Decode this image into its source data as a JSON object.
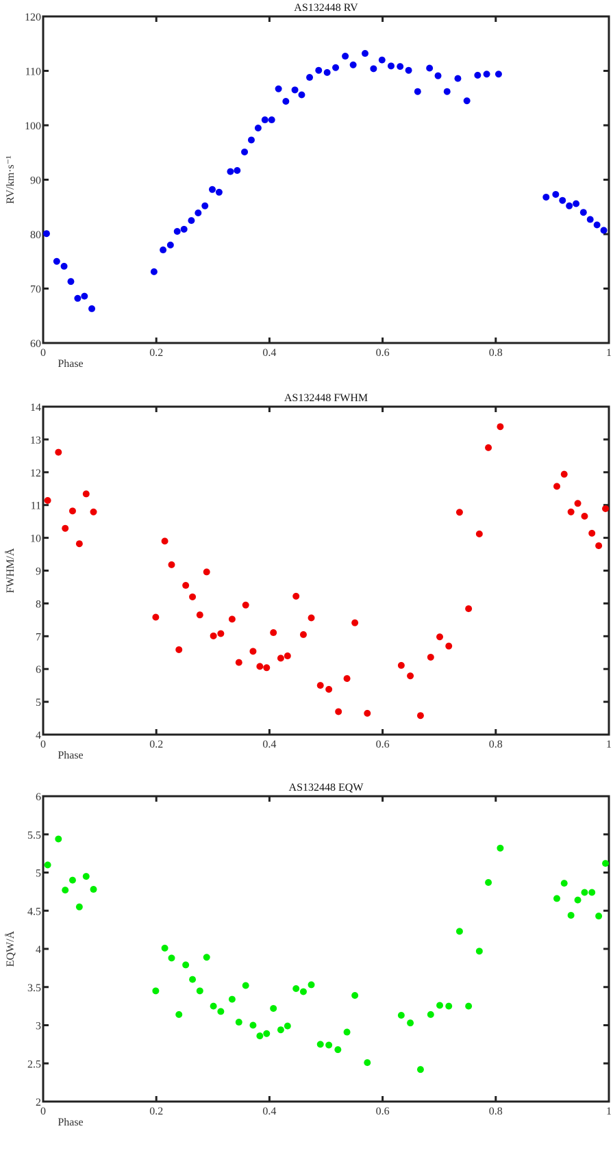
{
  "chart_data": [
    {
      "type": "scatter",
      "title": "AS132448 RV",
      "xlabel": "Phase",
      "ylabel": "RV/km·s⁻¹",
      "xlim": [
        0,
        1
      ],
      "ylim": [
        60,
        120
      ],
      "xticks": [
        "0",
        "0.2",
        "0.4",
        "0.6",
        "0.8",
        "1"
      ],
      "yticks": [
        "60",
        "70",
        "80",
        "90",
        "100",
        "110",
        "120"
      ],
      "grid": false,
      "color": "#0000ee",
      "x": [
        0.006,
        0.024,
        0.037,
        0.049,
        0.061,
        0.073,
        0.086,
        0.196,
        0.212,
        0.225,
        0.237,
        0.249,
        0.262,
        0.274,
        0.286,
        0.299,
        0.311,
        0.331,
        0.343,
        0.356,
        0.368,
        0.38,
        0.392,
        0.404,
        0.416,
        0.429,
        0.445,
        0.457,
        0.471,
        0.487,
        0.502,
        0.517,
        0.534,
        0.548,
        0.569,
        0.584,
        0.599,
        0.615,
        0.631,
        0.646,
        0.662,
        0.683,
        0.698,
        0.714,
        0.733,
        0.749,
        0.768,
        0.784,
        0.805,
        0.889,
        0.906,
        0.918,
        0.93,
        0.942,
        0.955,
        0.967,
        0.979,
        0.991
      ],
      "y": [
        80.1,
        75.0,
        74.1,
        71.3,
        68.2,
        68.6,
        66.3,
        73.1,
        77.1,
        78.0,
        80.5,
        80.9,
        82.5,
        83.9,
        85.2,
        88.2,
        87.7,
        91.5,
        91.7,
        95.1,
        97.3,
        99.5,
        101.0,
        101.0,
        106.7,
        104.4,
        106.5,
        105.6,
        108.8,
        110.1,
        109.7,
        110.6,
        112.7,
        111.1,
        113.2,
        110.4,
        112.0,
        110.9,
        110.8,
        110.1,
        106.2,
        110.5,
        109.1,
        106.2,
        108.6,
        104.5,
        109.2,
        109.4,
        109.4,
        86.8,
        87.3,
        86.2,
        85.2,
        85.6,
        84.0,
        82.7,
        81.7,
        80.7
      ]
    },
    {
      "type": "scatter",
      "title": "AS132448 FWHM",
      "xlabel": "Phase",
      "ylabel": "FWHM/Å",
      "xlim": [
        0,
        1
      ],
      "ylim": [
        4,
        14
      ],
      "xticks": [
        "0",
        "0.2",
        "0.4",
        "0.6",
        "0.8",
        "1"
      ],
      "yticks": [
        "4",
        "5",
        "6",
        "7",
        "8",
        "9",
        "10",
        "11",
        "12",
        "13",
        "14"
      ],
      "grid": false,
      "color": "#ee0000",
      "x": [
        0.008,
        0.027,
        0.039,
        0.052,
        0.064,
        0.076,
        0.089,
        0.199,
        0.215,
        0.227,
        0.24,
        0.252,
        0.264,
        0.277,
        0.289,
        0.301,
        0.314,
        0.334,
        0.346,
        0.358,
        0.371,
        0.383,
        0.395,
        0.407,
        0.42,
        0.432,
        0.447,
        0.46,
        0.474,
        0.49,
        0.505,
        0.522,
        0.537,
        0.551,
        0.573,
        0.633,
        0.649,
        0.667,
        0.685,
        0.701,
        0.717,
        0.736,
        0.752,
        0.771,
        0.787,
        0.808,
        0.908,
        0.921,
        0.933,
        0.945,
        0.957,
        0.97,
        0.982,
        0.994
      ],
      "y": [
        11.14,
        12.61,
        10.29,
        10.82,
        9.82,
        11.34,
        10.79,
        7.58,
        9.9,
        9.18,
        6.59,
        8.55,
        8.2,
        7.65,
        8.96,
        7.01,
        7.08,
        7.52,
        6.2,
        7.95,
        6.54,
        6.08,
        6.04,
        7.11,
        6.33,
        6.4,
        8.22,
        7.05,
        7.56,
        5.5,
        5.38,
        4.7,
        5.71,
        7.41,
        4.65,
        6.11,
        5.79,
        4.58,
        6.36,
        6.98,
        6.7,
        10.78,
        7.84,
        10.12,
        12.75,
        13.39,
        11.57,
        11.94,
        10.79,
        11.05,
        10.66,
        10.14,
        9.76,
        10.89
      ]
    },
    {
      "type": "scatter",
      "title": "AS132448 EQW",
      "xlabel": "Phase",
      "ylabel": "EQW/Å",
      "xlim": [
        0,
        1
      ],
      "ylim": [
        2,
        6
      ],
      "xticks": [
        "0",
        "0.2",
        "0.4",
        "0.6",
        "0.8",
        "1"
      ],
      "yticks": [
        "2",
        "2.5",
        "3",
        "3.5",
        "4",
        "4.5",
        "5",
        "5.5",
        "6"
      ],
      "grid": false,
      "color": "#00ee00",
      "x": [
        0.008,
        0.027,
        0.039,
        0.052,
        0.064,
        0.076,
        0.089,
        0.199,
        0.215,
        0.227,
        0.24,
        0.252,
        0.264,
        0.277,
        0.289,
        0.301,
        0.314,
        0.334,
        0.346,
        0.358,
        0.371,
        0.383,
        0.395,
        0.407,
        0.42,
        0.432,
        0.447,
        0.46,
        0.474,
        0.49,
        0.505,
        0.521,
        0.537,
        0.551,
        0.573,
        0.633,
        0.649,
        0.667,
        0.685,
        0.701,
        0.717,
        0.736,
        0.752,
        0.771,
        0.787,
        0.808,
        0.908,
        0.921,
        0.933,
        0.945,
        0.957,
        0.97,
        0.982,
        0.994
      ],
      "y": [
        5.1,
        5.44,
        4.77,
        4.9,
        4.55,
        4.95,
        4.78,
        3.45,
        4.01,
        3.88,
        3.14,
        3.79,
        3.6,
        3.45,
        3.89,
        3.25,
        3.18,
        3.34,
        3.04,
        3.52,
        3.0,
        2.86,
        2.89,
        3.22,
        2.94,
        2.99,
        3.48,
        3.44,
        3.53,
        2.75,
        2.74,
        2.68,
        2.91,
        3.39,
        2.51,
        3.13,
        3.03,
        2.42,
        3.14,
        3.26,
        3.25,
        4.23,
        3.25,
        3.97,
        4.87,
        5.32,
        4.66,
        4.86,
        4.44,
        4.64,
        4.74,
        4.74,
        4.43,
        5.12
      ]
    }
  ]
}
